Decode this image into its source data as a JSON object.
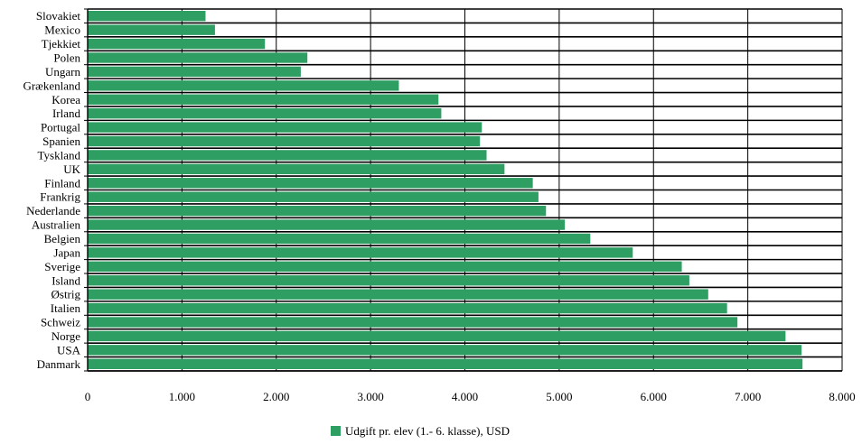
{
  "chart_data": {
    "type": "bar",
    "orientation": "horizontal",
    "title": "",
    "xlabel": "",
    "ylabel": "",
    "categories": [
      "Slovakiet",
      "Mexico",
      "Tjekkiet",
      "Polen",
      "Ungarn",
      "Grækenland",
      "Korea",
      "Irland",
      "Portugal",
      "Spanien",
      "Tyskland",
      "UK",
      "Finland",
      "Frankrig",
      "Nederlande",
      "Australien",
      "Belgien",
      "Japan",
      "Sverige",
      "Island",
      "Østrig",
      "Italien",
      "Schweiz",
      "Norge",
      "USA",
      "Danmark"
    ],
    "series": [
      {
        "name": "Udgift pr. elev (1.- 6. klasse), USD",
        "color": "#2e9e62",
        "values": [
          1250,
          1350,
          1880,
          2330,
          2260,
          3300,
          3720,
          3750,
          4180,
          4160,
          4230,
          4420,
          4720,
          4780,
          4860,
          5060,
          5330,
          5780,
          6300,
          6380,
          6580,
          6780,
          6890,
          7400,
          7570,
          7580
        ]
      }
    ],
    "xlim": [
      0,
      8000
    ],
    "xticks": [
      0,
      1000,
      2000,
      3000,
      4000,
      5000,
      6000,
      7000,
      8000
    ],
    "xtick_labels": [
      "0",
      "1.000",
      "2.000",
      "3.000",
      "4.000",
      "5.000",
      "6.000",
      "7.000",
      "8.000"
    ],
    "grid": "vertical",
    "legend": "bottom-center"
  }
}
